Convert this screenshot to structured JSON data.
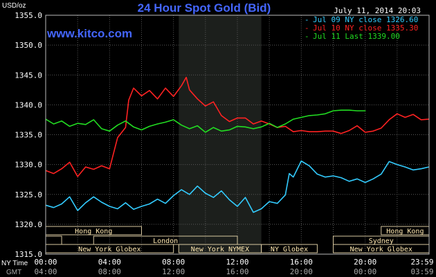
{
  "chart_data": {
    "type": "line",
    "title": "24 Hour Spot Gold (Bid)",
    "date_label": "July 11, 2014 20:03",
    "watermark": "www.kitco.com",
    "ylabel": "USD/oz",
    "ylim": [
      1315,
      1355
    ],
    "y_ticks": [
      "1355.0",
      "1350.0",
      "1345.0",
      "1340.0",
      "1335.0",
      "1330.0",
      "1325.0",
      "1320.0",
      "1315.0"
    ],
    "y_tick_values": [
      1355,
      1350,
      1345,
      1340,
      1335,
      1330,
      1325,
      1320,
      1315
    ],
    "x_axis_ny_label": "NY Time",
    "x_axis_gmt_label": "GMT",
    "x_ticks_ny": [
      "00:00",
      "04:00",
      "08:00",
      "12:00",
      "16:00",
      "20:00",
      "23:59"
    ],
    "x_ticks_gmt": [
      "04:00",
      "08:00",
      "12:00",
      "16:00",
      "20:00",
      "00:00",
      "03:59"
    ],
    "x_tick_hours": [
      0,
      4,
      8,
      12,
      16,
      20,
      23.98
    ],
    "xlim_hours": [
      0,
      24
    ],
    "shaded_region_hours": [
      8.33,
      13.5
    ],
    "grid": true,
    "legend_position": "top-right",
    "series": [
      {
        "name": "Jul 09 NY close 1326.60",
        "color": "#33ccff",
        "x": [
          0,
          0.5,
          1,
          1.5,
          2,
          2.5,
          3,
          3.5,
          4,
          4.5,
          5,
          5.5,
          6,
          6.5,
          7,
          7.5,
          8,
          8.5,
          9,
          9.5,
          10,
          10.5,
          11,
          11.5,
          12,
          12.5,
          13,
          13.5,
          14,
          14.5,
          15,
          15.25,
          15.5,
          16,
          16.5,
          17,
          17.5,
          18,
          18.5,
          19,
          19.5,
          20,
          20.5,
          21,
          21.5,
          22,
          22.5,
          23,
          23.5,
          23.98
        ],
        "values": [
          1323.2,
          1322.8,
          1323.4,
          1324.6,
          1322.3,
          1323.6,
          1324.6,
          1323.7,
          1323.0,
          1322.6,
          1323.6,
          1322.5,
          1323.0,
          1323.4,
          1324.2,
          1323.5,
          1324.8,
          1325.8,
          1325.0,
          1326.4,
          1325.2,
          1324.5,
          1325.6,
          1324.1,
          1323.0,
          1324.5,
          1322.0,
          1322.6,
          1323.8,
          1323.5,
          1324.9,
          1328.5,
          1327.9,
          1330.6,
          1329.8,
          1328.4,
          1327.9,
          1328.1,
          1327.8,
          1327.2,
          1327.6,
          1327.0,
          1327.6,
          1328.4,
          1330.5,
          1330.0,
          1329.6,
          1329.1,
          1329.3,
          1329.6
        ]
      },
      {
        "name": "Jul 10 NY close 1335.30",
        "color": "#ff2222",
        "x": [
          0,
          0.5,
          1,
          1.5,
          2,
          2.5,
          3,
          3.5,
          4,
          4.5,
          5,
          5.2,
          5.5,
          6,
          6.5,
          7,
          7.5,
          8,
          8.5,
          8.8,
          9,
          9.5,
          10,
          10.5,
          11,
          11.5,
          12,
          12.5,
          13,
          13.5,
          14,
          14.5,
          15,
          15.5,
          16,
          16.5,
          17,
          17.5,
          18,
          18.5,
          19,
          19.5,
          20,
          20.5,
          21,
          21.5,
          22,
          22.5,
          23,
          23.5,
          23.98
        ],
        "values": [
          1329.0,
          1328.5,
          1329.3,
          1330.4,
          1328.0,
          1329.6,
          1329.2,
          1329.8,
          1329.3,
          1334.5,
          1336.2,
          1340.8,
          1342.8,
          1341.5,
          1342.4,
          1341.0,
          1342.8,
          1341.4,
          1343.2,
          1344.6,
          1342.5,
          1341.0,
          1339.8,
          1340.5,
          1338.2,
          1337.2,
          1337.8,
          1337.8,
          1336.8,
          1337.3,
          1336.8,
          1336.2,
          1336.4,
          1335.5,
          1335.7,
          1335.5,
          1335.5,
          1335.6,
          1335.6,
          1335.2,
          1335.7,
          1336.5,
          1335.4,
          1335.6,
          1336.1,
          1337.5,
          1338.5,
          1337.9,
          1338.4,
          1337.5,
          1337.6
        ]
      },
      {
        "name": "Jul 11 Last 1339.00",
        "color": "#22dd22",
        "x": [
          0,
          0.5,
          1,
          1.5,
          2,
          2.5,
          3,
          3.5,
          4,
          4.5,
          5,
          5.5,
          6,
          6.5,
          7,
          7.5,
          8,
          8.5,
          9,
          9.5,
          10,
          10.5,
          11,
          11.5,
          12,
          12.5,
          13,
          13.5,
          14,
          14.5,
          15,
          15.5,
          16,
          16.5,
          17,
          17.5,
          18,
          18.5,
          19,
          19.5,
          20.03
        ],
        "values": [
          1337.6,
          1336.8,
          1337.3,
          1336.4,
          1336.9,
          1336.7,
          1337.5,
          1336.0,
          1335.6,
          1336.6,
          1337.3,
          1336.3,
          1335.8,
          1336.4,
          1336.8,
          1337.1,
          1337.5,
          1336.6,
          1336.0,
          1336.5,
          1335.4,
          1336.2,
          1335.6,
          1335.8,
          1336.4,
          1336.3,
          1336.0,
          1336.3,
          1336.9,
          1336.2,
          1336.8,
          1337.6,
          1337.9,
          1338.2,
          1338.3,
          1338.5,
          1339.0,
          1339.1,
          1339.1,
          1339.0,
          1339.0
        ]
      }
    ],
    "sessions": [
      {
        "label": "Hong Kong",
        "row": 0,
        "start": 0,
        "end": 6.0
      },
      {
        "label": "Hong Kong",
        "row": 0,
        "start": 21.0,
        "end": 24
      },
      {
        "label": "London",
        "row": 1,
        "start": 0,
        "end": 1.0
      },
      {
        "label": "London",
        "row": 1,
        "start": 3.0,
        "end": 12.0
      },
      {
        "label": "Sydney",
        "row": 1,
        "start": 18.0,
        "end": 24
      },
      {
        "label": "New York Globex",
        "row": 2,
        "start": 0,
        "end": 8.0
      },
      {
        "label": "New York NYMEX",
        "row": 2,
        "start": 8.33,
        "end": 13.5
      },
      {
        "label": "NY Globex",
        "row": 2,
        "start": 13.5,
        "end": 17.0
      },
      {
        "label": "New York Globex",
        "row": 2,
        "start": 18.0,
        "end": 24
      }
    ]
  }
}
